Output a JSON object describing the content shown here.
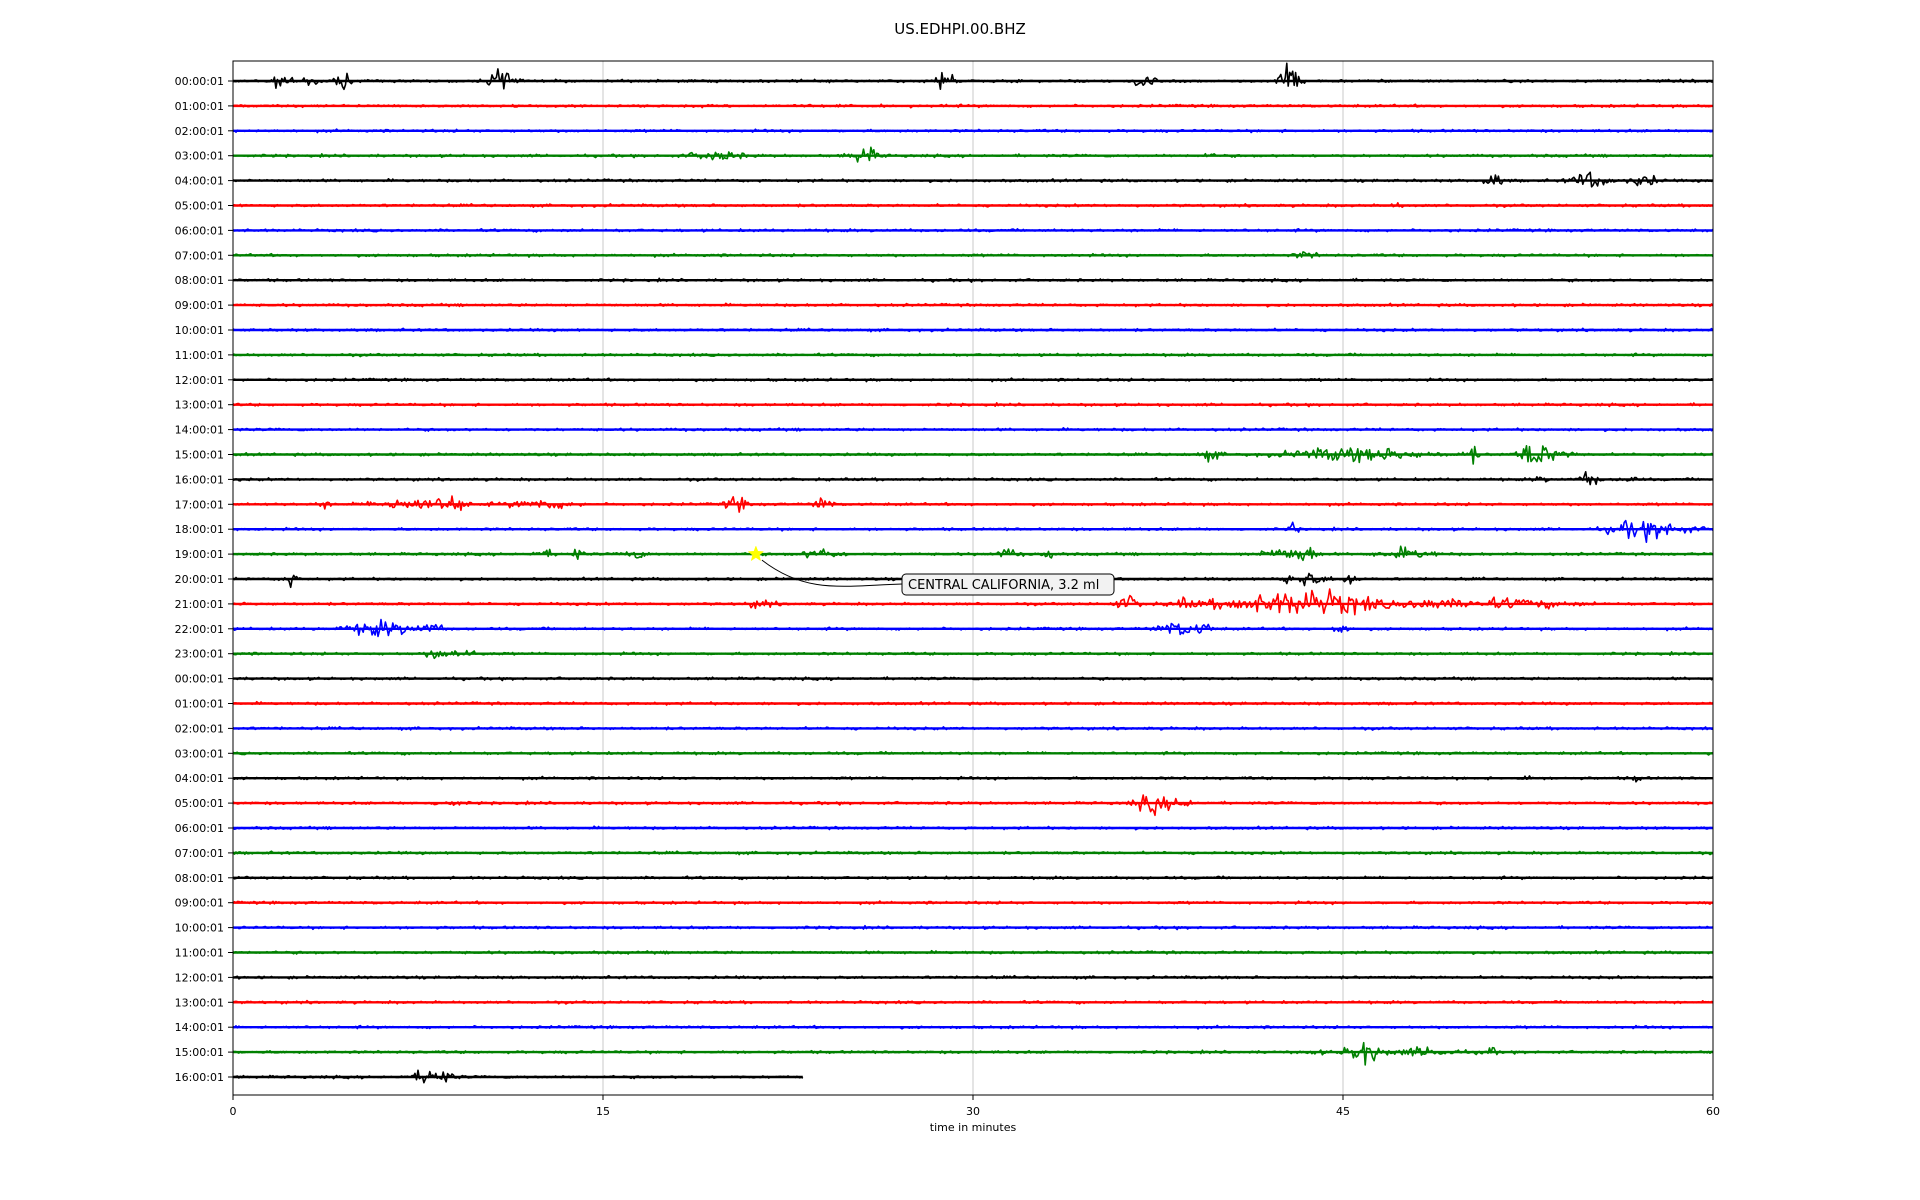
{
  "chart_data": {
    "type": "line",
    "title": "US.EDHPI.00.BHZ",
    "xlabel": "time in minutes",
    "xlim": [
      0,
      60
    ],
    "x_ticks": [
      0,
      15,
      30,
      45,
      60
    ],
    "grid": "vertical",
    "colors": [
      "#000000",
      "#ff0000",
      "#0000ff",
      "#008000"
    ],
    "rows": [
      {
        "label": "00:00:01",
        "end": 60,
        "bursts": [
          [
            1.9,
            1.2,
            0.4
          ],
          [
            3,
            1.0,
            0.5
          ],
          [
            4.4,
            2.4,
            0.3
          ],
          [
            10.9,
            2.8,
            0.5
          ],
          [
            28.9,
            2.5,
            0.4
          ],
          [
            37,
            1.8,
            0.4
          ],
          [
            42.8,
            3.4,
            0.4
          ]
        ]
      },
      {
        "label": "01:00:01",
        "end": 60,
        "bursts": []
      },
      {
        "label": "02:00:01",
        "end": 60,
        "bursts": []
      },
      {
        "label": "03:00:01",
        "end": 60,
        "bursts": [
          [
            19.6,
            0.8,
            1.2
          ],
          [
            25.6,
            1.5,
            0.6
          ],
          [
            39.5,
            0.4,
            0.3
          ]
        ]
      },
      {
        "label": "04:00:01",
        "end": 60,
        "bursts": [
          [
            51.1,
            1.3,
            0.4
          ],
          [
            55,
            1.5,
            0.8
          ],
          [
            57.2,
            1.1,
            0.6
          ]
        ]
      },
      {
        "label": "05:00:01",
        "end": 60,
        "bursts": [
          [
            47.2,
            0.5,
            0.2
          ]
        ]
      },
      {
        "label": "06:00:01",
        "end": 60,
        "bursts": []
      },
      {
        "label": "07:00:01",
        "end": 60,
        "bursts": [
          [
            43.5,
            0.6,
            0.5
          ]
        ]
      },
      {
        "label": "08:00:01",
        "end": 60,
        "bursts": []
      },
      {
        "label": "09:00:01",
        "end": 60,
        "bursts": []
      },
      {
        "label": "10:00:01",
        "end": 60,
        "bursts": []
      },
      {
        "label": "11:00:01",
        "end": 60,
        "bursts": []
      },
      {
        "label": "12:00:01",
        "end": 60,
        "bursts": []
      },
      {
        "label": "13:00:01",
        "end": 60,
        "bursts": []
      },
      {
        "label": "14:00:01",
        "end": 60,
        "bursts": []
      },
      {
        "label": "15:00:01",
        "end": 60,
        "bursts": [
          [
            39.6,
            0.8,
            0.5
          ],
          [
            45.5,
            1.2,
            3
          ],
          [
            50.2,
            1.6,
            0.3
          ],
          [
            52.7,
            2.4,
            0.6
          ],
          [
            53.6,
            0.8,
            0.8
          ]
        ]
      },
      {
        "label": "16:00:01",
        "end": 60,
        "bursts": [
          [
            53,
            0.5,
            0.3
          ],
          [
            55,
            1.4,
            0.4
          ],
          [
            56.6,
            0.6,
            0.3
          ]
        ]
      },
      {
        "label": "17:00:01",
        "end": 60,
        "bursts": [
          [
            3.7,
            0.6,
            0.3
          ],
          [
            7.5,
            1,
            2
          ],
          [
            8.9,
            1.2,
            0.5
          ],
          [
            12.5,
            0.8,
            1.5
          ],
          [
            20.4,
            1.3,
            0.5
          ],
          [
            23.9,
            1.2,
            0.4
          ]
        ]
      },
      {
        "label": "18:00:01",
        "end": 60,
        "bursts": [
          [
            43,
            2.5,
            0.15
          ],
          [
            56.5,
            0.8,
            1
          ],
          [
            57.8,
            1.3,
            1.5
          ]
        ]
      },
      {
        "label": "19:00:01",
        "end": 60,
        "bursts": [
          [
            12.6,
            0.6,
            0.5
          ],
          [
            13.9,
            1,
            0.3
          ],
          [
            16.3,
            0.8,
            0.5
          ],
          [
            23.8,
            1,
            0.8
          ],
          [
            31.4,
            0.8,
            0.5
          ],
          [
            33.1,
            1.6,
            0.2
          ],
          [
            42.6,
            0.9,
            1.2
          ],
          [
            43.5,
            1.5,
            0.4
          ],
          [
            47.6,
            0.9,
            1.2
          ]
        ]
      },
      {
        "label": "20:00:01",
        "end": 60,
        "bursts": [
          [
            2.3,
            1.4,
            0.3
          ],
          [
            43.4,
            1.2,
            1
          ],
          [
            45.3,
            1.2,
            0.3
          ]
        ]
      },
      {
        "label": "21:00:01",
        "end": 60,
        "bursts": [
          [
            21.4,
            0.7,
            0.6
          ],
          [
            36.3,
            1.5,
            0.5
          ],
          [
            38.5,
            0.7,
            0.4
          ],
          [
            41.7,
            1.2,
            3
          ],
          [
            44.4,
            1.8,
            2.5
          ],
          [
            48.4,
            0.7,
            1.2
          ],
          [
            51.6,
            0.8,
            3
          ]
        ]
      },
      {
        "label": "22:00:01",
        "end": 60,
        "bursts": [
          [
            6,
            1.3,
            1.5
          ],
          [
            8.1,
            0.8,
            0.5
          ],
          [
            38.4,
            1.2,
            1
          ],
          [
            39.4,
            0.8,
            0.3
          ],
          [
            44.9,
            1.3,
            0.3
          ]
        ]
      },
      {
        "label": "23:00:01",
        "end": 60,
        "bursts": [
          [
            8.2,
            0.9,
            0.4
          ],
          [
            9.3,
            0.7,
            0.8
          ]
        ]
      },
      {
        "label": "00:00:01",
        "end": 60,
        "bursts": []
      },
      {
        "label": "01:00:01",
        "end": 60,
        "bursts": []
      },
      {
        "label": "02:00:01",
        "end": 60,
        "bursts": []
      },
      {
        "label": "03:00:01",
        "end": 60,
        "bursts": []
      },
      {
        "label": "04:00:01",
        "end": 60,
        "bursts": [
          [
            52.4,
            0.4,
            0.3
          ],
          [
            56.9,
            0.5,
            0.3
          ]
        ]
      },
      {
        "label": "05:00:01",
        "end": 60,
        "bursts": [
          [
            8.7,
            0.5,
            0.6
          ],
          [
            37.3,
            1.6,
            0.8
          ],
          [
            38.5,
            0.8,
            0.5
          ]
        ]
      },
      {
        "label": "06:00:01",
        "end": 60,
        "bursts": []
      },
      {
        "label": "07:00:01",
        "end": 60,
        "bursts": []
      },
      {
        "label": "08:00:01",
        "end": 60,
        "bursts": []
      },
      {
        "label": "09:00:01",
        "end": 60,
        "bursts": []
      },
      {
        "label": "10:00:01",
        "end": 60,
        "bursts": []
      },
      {
        "label": "11:00:01",
        "end": 60,
        "bursts": []
      },
      {
        "label": "12:00:01",
        "end": 60,
        "bursts": []
      },
      {
        "label": "13:00:01",
        "end": 60,
        "bursts": []
      },
      {
        "label": "14:00:01",
        "end": 60,
        "bursts": []
      },
      {
        "label": "15:00:01",
        "end": 60,
        "bursts": [
          [
            43.9,
            0.5,
            0.3
          ],
          [
            45.8,
            2,
            0.8
          ],
          [
            48.4,
            0.7,
            1.5
          ],
          [
            50.9,
            1,
            0.3
          ]
        ]
      },
      {
        "label": "16:00:01",
        "end": 23.1,
        "bursts": [
          [
            8.1,
            1.6,
            0.8
          ]
        ]
      }
    ],
    "event": {
      "label": "CENTRAL CALIFORNIA, 3.2 ml",
      "row": 19,
      "minute": 21.2,
      "marker_color": "#ffff00"
    }
  }
}
